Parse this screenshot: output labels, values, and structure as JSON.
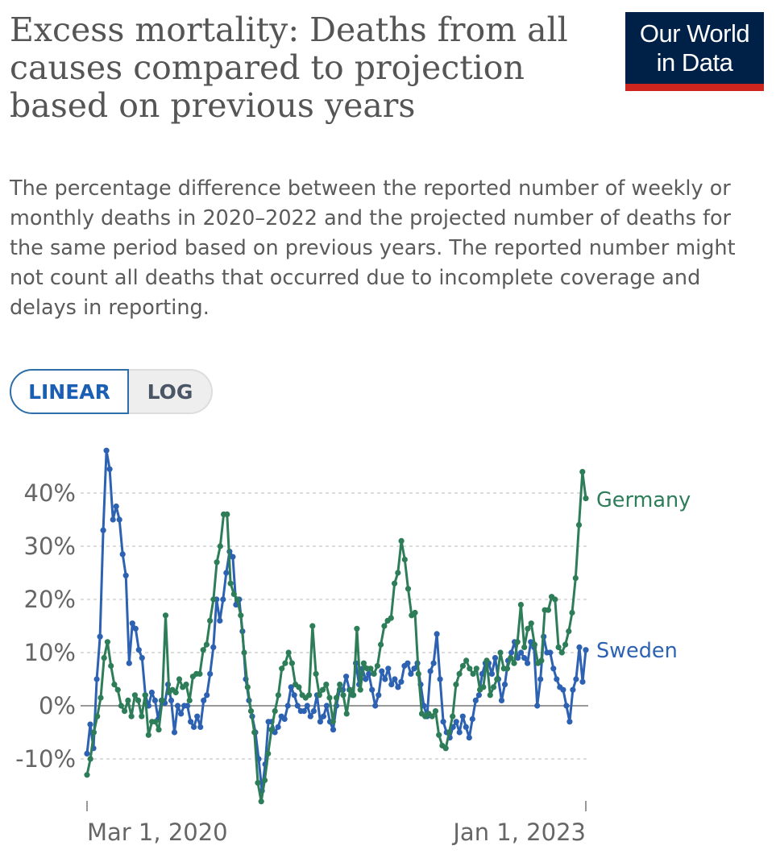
{
  "header": {
    "title": "Excess mortality: Deaths from all causes compared to projection based on previous years",
    "subtitle": "The percentage difference between the reported number of weekly or monthly deaths in 2020–2022 and the projected number of deaths for the same period based on previous years. The reported number might not count all deaths that occurred due to incomplete coverage and delays in reporting.",
    "logo_line1": "Our World",
    "logo_line2": "in Data"
  },
  "controls": {
    "linear_label": "LINEAR",
    "log_label": "LOG",
    "selected": "LINEAR"
  },
  "colors": {
    "germany": "#2e7d59",
    "sweden": "#2d62b2",
    "logo_bg": "#002147",
    "logo_accent": "#ce261e"
  },
  "chart_data": {
    "type": "line",
    "title": "Excess mortality: Deaths from all causes compared to projection based on previous years",
    "xlabel": "",
    "ylabel": "",
    "ylim": [
      -15,
      48
    ],
    "yticks": [
      -10,
      0,
      10,
      20,
      30,
      40
    ],
    "ytick_labels": [
      "-10%",
      "0%",
      "10%",
      "20%",
      "30%",
      "40%"
    ],
    "xticks": [
      "Mar 1, 2020",
      "Jan 1, 2023"
    ],
    "zero_line": true,
    "series": [
      {
        "name": "Sweden",
        "values": [
          -9,
          -3.5,
          -8,
          5,
          13,
          33,
          48,
          44.5,
          35,
          37.5,
          35,
          28.5,
          24.5,
          8,
          15.5,
          14.5,
          10.5,
          9,
          2,
          0,
          2.5,
          1,
          -2.5,
          1,
          0.5,
          4,
          1,
          -5,
          0,
          -1.5,
          0,
          0,
          -3,
          -4,
          -2,
          -4,
          1,
          2,
          6,
          11,
          20,
          16,
          20,
          25,
          29,
          28,
          19,
          20,
          14,
          5,
          1,
          -2,
          -5,
          -10,
          -16,
          -11,
          -3,
          -3,
          -5,
          -4,
          -2,
          -2.5,
          0,
          3.5,
          2,
          0,
          -1,
          -1,
          0,
          -2,
          -1,
          2,
          -3,
          -2,
          0,
          -3,
          -4.5,
          0,
          3,
          3,
          5.5,
          3,
          2,
          8,
          4,
          7,
          5,
          6,
          3,
          0,
          2,
          6.5,
          5,
          7,
          4,
          5,
          3.5,
          4.5,
          7.5,
          8,
          6,
          7,
          8,
          4,
          0,
          -2,
          6.5,
          8,
          13.5,
          5,
          -3,
          -5,
          -6,
          -4,
          -3,
          -5,
          -2,
          -4,
          -6,
          -2.5,
          1,
          2,
          6,
          8,
          8,
          6,
          9,
          5,
          1,
          4,
          8.5,
          10,
          12,
          9,
          10,
          9,
          8,
          12,
          11,
          0,
          5,
          13,
          10,
          10,
          7,
          5,
          3.5,
          3,
          0,
          -3,
          3,
          5,
          11,
          4.5,
          10.5
        ],
        "end_label": "Sweden",
        "end_value": 10.5
      },
      {
        "name": "Germany",
        "values": [
          -13,
          -10,
          -5,
          -2,
          1.5,
          9,
          12,
          7.5,
          4,
          3,
          0,
          -1,
          1,
          -2,
          2,
          1,
          -2,
          2,
          -5.5,
          -3,
          -3,
          -4.5,
          1,
          17,
          2.5,
          3,
          2.5,
          5,
          3.5,
          4,
          1,
          5.5,
          6,
          6,
          10.5,
          11.5,
          16,
          20,
          27,
          30,
          36,
          36,
          23,
          21,
          20,
          17,
          10,
          3.5,
          -1,
          -5,
          -14.5,
          -18,
          -14,
          -9,
          -4.5,
          -1,
          2,
          7,
          8,
          10,
          8,
          4,
          3.5,
          2,
          1.5,
          2,
          15,
          6,
          2,
          3,
          4,
          1.5,
          -3,
          1.5,
          4,
          2,
          -1.5,
          3,
          2,
          14.5,
          3,
          8,
          7,
          7,
          6,
          7.5,
          11.5,
          15,
          16,
          16.5,
          23,
          25,
          31,
          27.5,
          22,
          17,
          17.5,
          6,
          -1.5,
          -2,
          -1.5,
          -2,
          -1,
          -5.5,
          -7.5,
          -8,
          -5,
          -2,
          4,
          6,
          7.5,
          8.5,
          7,
          6,
          7,
          3,
          3.5,
          8.5,
          2,
          3.5,
          5,
          10,
          7,
          7,
          9,
          8,
          12,
          19,
          11,
          14.5,
          15.5,
          11.5,
          8,
          8.5,
          18,
          18,
          20.5,
          20,
          11,
          10,
          11.5,
          14,
          17.5,
          24,
          34,
          44,
          39
        ]
      }
    ]
  }
}
